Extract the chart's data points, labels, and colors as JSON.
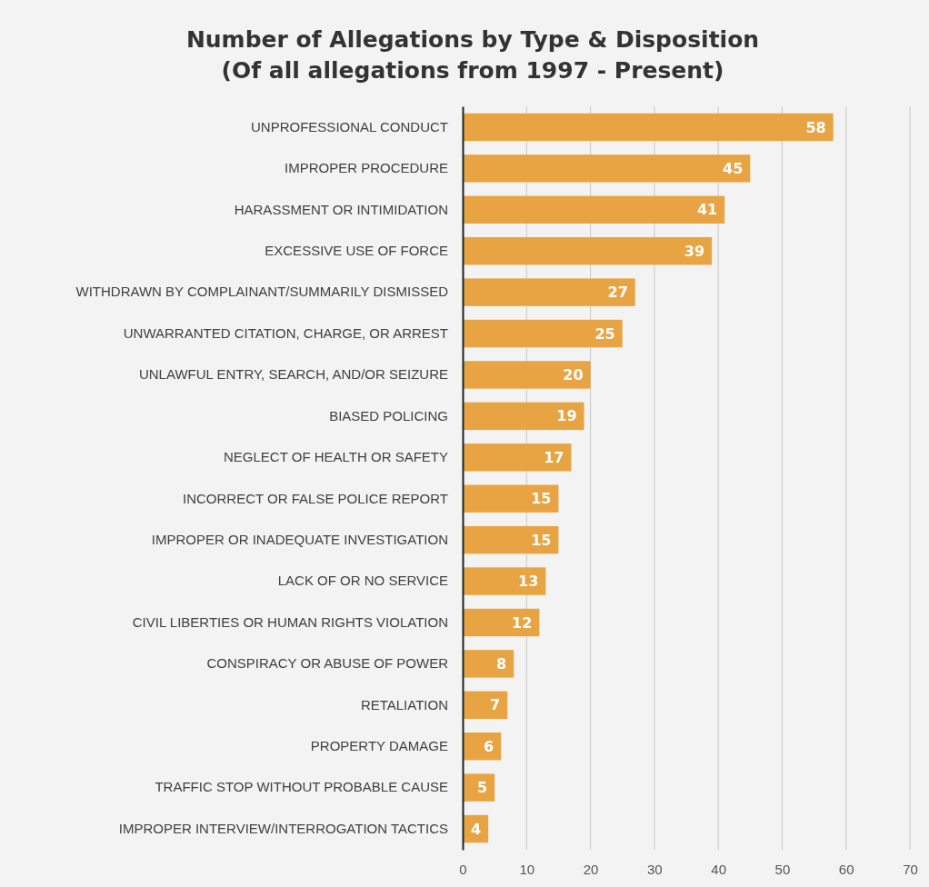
{
  "chart_data": {
    "type": "bar",
    "orientation": "horizontal",
    "title": "Number of Allegations by Type & Disposition",
    "subtitle": "(Of all allegations from 1997 - Present)",
    "categories": [
      "UNPROFESSIONAL CONDUCT",
      "IMPROPER PROCEDURE",
      "HARASSMENT OR INTIMIDATION",
      "EXCESSIVE USE OF FORCE",
      "WITHDRAWN BY COMPLAINANT/SUMMARILY DISMISSED",
      "UNWARRANTED CITATION, CHARGE, OR ARREST",
      "UNLAWFUL ENTRY, SEARCH, AND/OR SEIZURE",
      "BIASED POLICING",
      "NEGLECT OF HEALTH OR SAFETY",
      "INCORRECT OR FALSE POLICE REPORT",
      "IMPROPER OR INADEQUATE INVESTIGATION",
      "LACK OF OR NO SERVICE",
      "CIVIL LIBERTIES OR HUMAN RIGHTS VIOLATION",
      "CONSPIRACY OR ABUSE OF POWER",
      "RETALIATION",
      "PROPERTY DAMAGE",
      "TRAFFIC STOP WITHOUT PROBABLE CAUSE",
      "IMPROPER INTERVIEW/INTERROGATION TACTICS"
    ],
    "values": [
      58,
      45,
      41,
      39,
      27,
      25,
      20,
      19,
      17,
      15,
      15,
      13,
      12,
      8,
      7,
      6,
      5,
      4
    ],
    "color": "#e8a443",
    "xlim": [
      0,
      70
    ],
    "xticks": [
      0,
      10,
      20,
      30,
      40,
      50,
      60,
      70
    ],
    "grid": "x",
    "data_labels": true
  }
}
